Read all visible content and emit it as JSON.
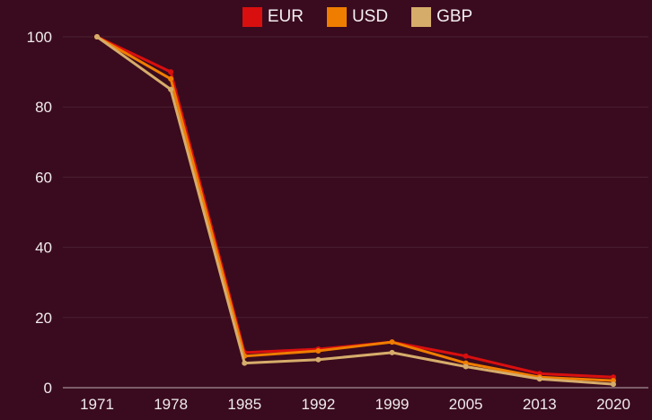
{
  "chart_data": {
    "type": "line",
    "title": "",
    "xlabel": "",
    "ylabel": "",
    "x": [
      "1971",
      "1978",
      "1985",
      "1992",
      "1999",
      "2005",
      "2013",
      "2020"
    ],
    "series": [
      {
        "name": "EUR",
        "color": "#d90f0f",
        "values": [
          100,
          90,
          10,
          11,
          13,
          9,
          4,
          3
        ]
      },
      {
        "name": "USD",
        "color": "#ef7d00",
        "values": [
          100,
          88,
          9,
          10.5,
          13,
          7,
          3,
          2
        ]
      },
      {
        "name": "GBP",
        "color": "#d6ac6b",
        "values": [
          100,
          85,
          7,
          8,
          10,
          6,
          2.5,
          1
        ]
      }
    ],
    "ylim": [
      0,
      100
    ],
    "yticks": [
      0,
      20,
      40,
      60,
      80,
      100
    ],
    "grid": "horizontal-only",
    "legend_position": "top-center",
    "marker": "dot",
    "draw_order": "EUR bottom, USD middle, GBP top"
  },
  "colors": {
    "background": "#3a0b1e",
    "gridline": "rgba(255,255,255,0.09)",
    "axis_line": "rgba(255,255,255,0.45)",
    "text": "#f0eaee"
  }
}
